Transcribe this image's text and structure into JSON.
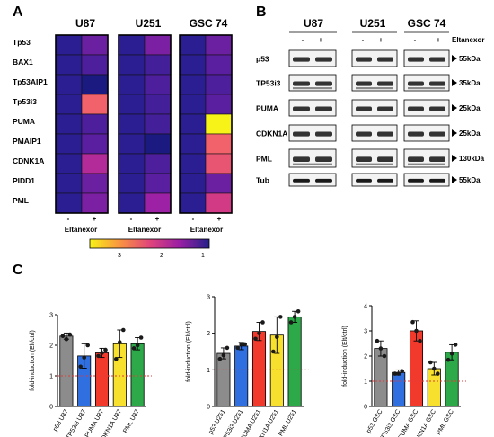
{
  "panels": {
    "a": "A",
    "b": "B",
    "c": "C"
  },
  "heatmap": {
    "cell_lines": [
      "U87",
      "U251",
      "GSC 74"
    ],
    "genes": [
      "Tp53",
      "BAX1",
      "Tp53AIP1",
      "Tp53i3",
      "PUMA",
      "PMAIP1",
      "CDNK1A",
      "PIDD1",
      "PML"
    ],
    "treatment_minus": "-",
    "treatment_plus": "+",
    "xlabel": "Eltanexor",
    "colorbar_ticks": [
      "3",
      "2",
      "1"
    ],
    "values": [
      [
        [
          1.0,
          1.5
        ],
        [
          1.0,
          1.6
        ],
        [
          1.0,
          1.5
        ]
      ],
      [
        [
          1.0,
          1.3
        ],
        [
          1.0,
          1.2
        ],
        [
          1.0,
          1.4
        ]
      ],
      [
        [
          1.0,
          0.8
        ],
        [
          1.0,
          1.3
        ],
        [
          1.0,
          1.3
        ]
      ],
      [
        [
          1.0,
          2.6
        ],
        [
          1.0,
          1.2
        ],
        [
          1.0,
          1.4
        ]
      ],
      [
        [
          1.0,
          1.3
        ],
        [
          1.0,
          1.2
        ],
        [
          1.0,
          3.5
        ]
      ],
      [
        [
          1.0,
          1.4
        ],
        [
          1.0,
          0.8
        ],
        [
          1.0,
          2.6
        ]
      ],
      [
        [
          1.0,
          2.0
        ],
        [
          1.0,
          1.3
        ],
        [
          1.0,
          2.5
        ]
      ],
      [
        [
          1.0,
          1.5
        ],
        [
          1.0,
          1.4
        ],
        [
          1.0,
          1.5
        ]
      ],
      [
        [
          1.0,
          1.6
        ],
        [
          1.0,
          1.8
        ],
        [
          1.0,
          2.3
        ]
      ]
    ],
    "colors": {
      "low": "#23208a",
      "mid": "#c2279b",
      "high": "#f7f217"
    }
  },
  "western": {
    "cell_lines": [
      "U87",
      "U251",
      "GSC 74"
    ],
    "treatment_minus": "-",
    "treatment_plus": "+",
    "treatment_label": "Eltanexor",
    "proteins": [
      "p53",
      "TP53i3",
      "PUMA",
      "CDKN1A",
      "PML",
      "Tub"
    ],
    "sizes": [
      "55kDa",
      "35kDa",
      "25kDa",
      "25kDa",
      "130kDa",
      "55kDa"
    ]
  },
  "chart_data": [
    {
      "type": "bar",
      "categories": [
        "p53 U87",
        "TP53i3 U87",
        "PUMA U87",
        "CDKN1A U87",
        "PML U87"
      ],
      "values": [
        2.3,
        1.65,
        1.75,
        2.05,
        2.05
      ],
      "errors": [
        0.1,
        0.4,
        0.15,
        0.45,
        0.2
      ],
      "points": [
        [
          2.3,
          2.35,
          2.2
        ],
        [
          1.3,
          2.0,
          1.6
        ],
        [
          1.65,
          1.85,
          1.75
        ],
        [
          1.55,
          2.5,
          2.1
        ],
        [
          1.9,
          2.25,
          2.0
        ]
      ],
      "ylabel": "fold-induction (Elt/ctrl)",
      "ylim": [
        0,
        3
      ],
      "yticks": [
        0,
        1,
        2,
        3
      ],
      "colors": [
        "#8c8c8c",
        "#2f6fe0",
        "#f23a2c",
        "#f7e12e",
        "#2ea94a"
      ],
      "reference_line": 1
    },
    {
      "type": "bar",
      "categories": [
        "p53 U251",
        "TP53i3 U251",
        "PUMA U251",
        "CDKN1A U251",
        "PML U251"
      ],
      "values": [
        1.45,
        1.65,
        2.05,
        1.95,
        2.45
      ],
      "errors": [
        0.15,
        0.1,
        0.25,
        0.5,
        0.15
      ],
      "points": [
        [
          1.3,
          1.6,
          1.4
        ],
        [
          1.6,
          1.7,
          1.7
        ],
        [
          1.85,
          2.3,
          2.0
        ],
        [
          1.5,
          2.45,
          1.9
        ],
        [
          2.3,
          2.6,
          2.45
        ]
      ],
      "ylabel": "fold-induction (Elt/ctrl)",
      "ylim": [
        0,
        3
      ],
      "yticks": [
        0,
        1,
        2,
        3
      ],
      "colors": [
        "#8c8c8c",
        "#2f6fe0",
        "#f23a2c",
        "#f7e12e",
        "#2ea94a"
      ],
      "reference_line": 1
    },
    {
      "type": "bar",
      "categories": [
        "p53 GSC",
        "TP53i3 GSC",
        "PUMA GSC",
        "CDKN1A GSC",
        "PML GSC"
      ],
      "values": [
        2.3,
        1.35,
        3.0,
        1.5,
        2.15
      ],
      "errors": [
        0.3,
        0.1,
        0.4,
        0.25,
        0.3
      ],
      "points": [
        [
          2.6,
          2.0,
          2.3
        ],
        [
          1.3,
          1.4,
          1.3
        ],
        [
          3.35,
          2.6,
          3.0
        ],
        [
          1.75,
          1.3,
          1.5
        ],
        [
          1.85,
          2.45,
          2.1
        ]
      ],
      "ylabel": "fold-induction (Elt/ctrl)",
      "ylim": [
        0,
        4
      ],
      "yticks": [
        0,
        1,
        2,
        3,
        4
      ],
      "colors": [
        "#8c8c8c",
        "#2f6fe0",
        "#f23a2c",
        "#f7e12e",
        "#2ea94a"
      ],
      "reference_line": 1
    }
  ]
}
